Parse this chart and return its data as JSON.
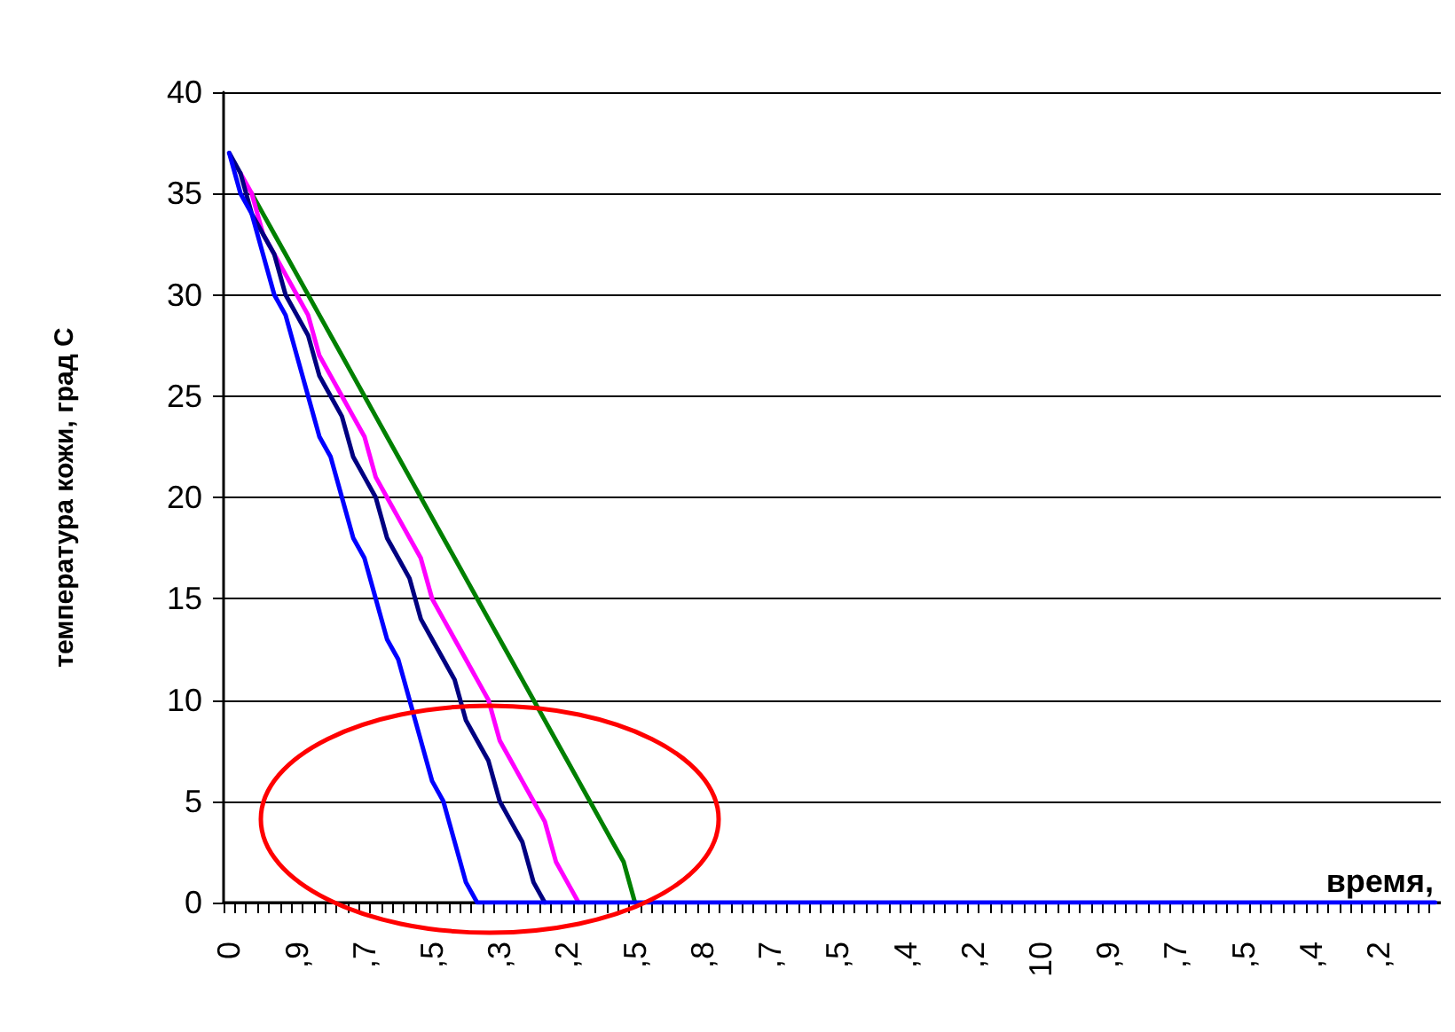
{
  "chart_data": {
    "type": "line",
    "xlabel": "время,",
    "ylabel": "температура кожи, град С",
    "ylim": [
      0,
      40
    ],
    "yticks": [
      0,
      5,
      10,
      15,
      20,
      25,
      30,
      35,
      40
    ],
    "grid": "y",
    "marker": "none",
    "line_style": "solid",
    "categories": [
      "0",
      null,
      null,
      null,
      null,
      null,
      ",9",
      null,
      null,
      null,
      null,
      null,
      ",7",
      null,
      null,
      null,
      null,
      null,
      ",5",
      null,
      null,
      null,
      null,
      null,
      ",3",
      null,
      null,
      null,
      null,
      null,
      ",2",
      null,
      null,
      null,
      null,
      null,
      ",5",
      null,
      null,
      null,
      null,
      null,
      ",8",
      null,
      null,
      null,
      null,
      null,
      ",7",
      null,
      null,
      null,
      null,
      null,
      ",5",
      null,
      null,
      null,
      null,
      null,
      ",4",
      null,
      null,
      null,
      null,
      null,
      ",2",
      null,
      null,
      null,
      null,
      null,
      "10",
      null,
      null,
      null,
      null,
      null,
      ",9",
      null,
      null,
      null,
      null,
      null,
      ",7",
      null,
      null,
      null,
      null,
      null,
      ",5",
      null,
      null,
      null,
      null,
      null,
      ",4",
      null,
      null,
      null,
      null,
      null,
      ",2",
      null,
      null,
      null,
      null,
      null
    ],
    "series": [
      {
        "color": "#008000",
        "values": [
          null,
          null,
          35,
          34,
          33,
          32,
          31,
          30,
          29,
          28,
          27,
          26,
          25,
          24,
          23,
          22,
          21,
          20,
          19,
          18,
          17,
          16,
          15,
          14,
          13,
          12,
          11,
          10,
          9,
          8,
          7,
          6,
          5,
          4,
          3,
          2,
          0,
          null,
          null,
          null,
          null,
          null,
          null,
          null,
          null,
          null,
          null,
          null,
          null,
          null,
          null,
          null,
          null,
          null,
          null,
          null,
          null,
          null,
          null,
          null,
          null,
          null,
          null,
          null,
          null,
          null,
          null,
          null,
          null,
          null,
          null,
          null,
          null,
          null,
          null,
          null,
          null,
          null,
          null,
          null,
          null,
          null,
          null,
          null,
          null,
          null,
          null,
          null,
          null,
          null,
          null,
          null,
          null,
          null,
          null,
          null,
          null,
          null,
          null,
          null,
          null,
          null,
          null,
          null,
          null,
          null,
          null,
          null
        ]
      },
      {
        "color": "#ff00ff",
        "values": [
          null,
          36,
          35,
          33,
          32,
          31,
          30,
          29,
          27,
          26,
          25,
          24,
          23,
          21,
          20,
          19,
          18,
          17,
          15,
          14,
          13,
          12,
          11,
          10,
          8,
          7,
          6,
          5,
          4,
          2,
          1,
          0,
          null,
          null,
          null,
          null,
          null,
          null,
          null,
          null,
          null,
          null,
          null,
          null,
          null,
          null,
          null,
          null,
          null,
          null,
          null,
          null,
          null,
          null,
          null,
          null,
          null,
          null,
          null,
          null,
          null,
          null,
          null,
          null,
          null,
          null,
          null,
          null,
          null,
          null,
          null,
          null,
          null,
          null,
          null,
          null,
          null,
          null,
          null,
          null,
          null,
          null,
          null,
          null,
          null,
          null,
          null,
          null,
          null,
          null,
          null,
          null,
          null,
          null,
          null,
          null,
          null,
          null,
          null,
          null,
          null,
          null,
          null,
          null,
          null,
          null,
          null,
          null
        ]
      },
      {
        "color": "#000080",
        "values": [
          37,
          36,
          34,
          33,
          32,
          30,
          29,
          28,
          26,
          25,
          24,
          22,
          21,
          20,
          18,
          17,
          16,
          14,
          13,
          12,
          11,
          9,
          8,
          7,
          5,
          4,
          3,
          1,
          0,
          null,
          null,
          null,
          null,
          null,
          null,
          null,
          null,
          null,
          null,
          null,
          null,
          null,
          null,
          null,
          null,
          null,
          null,
          null,
          null,
          null,
          null,
          null,
          null,
          null,
          null,
          null,
          null,
          null,
          null,
          null,
          null,
          null,
          null,
          null,
          null,
          null,
          null,
          null,
          null,
          null,
          null,
          null,
          null,
          null,
          null,
          null,
          null,
          null,
          null,
          null,
          null,
          null,
          null,
          null,
          null,
          null,
          null,
          null,
          null,
          null,
          null,
          null,
          null,
          null,
          null,
          null,
          null,
          null,
          null,
          null,
          null,
          null,
          null,
          null,
          null,
          null,
          null,
          null
        ]
      },
      {
        "color": "#0000ff",
        "values": [
          37,
          35,
          34,
          32,
          30,
          29,
          27,
          25,
          23,
          22,
          20,
          18,
          17,
          15,
          13,
          12,
          10,
          8,
          6,
          5,
          3,
          1,
          0,
          0,
          0,
          0,
          0,
          0,
          0,
          0,
          0,
          0,
          0,
          0,
          0,
          0,
          0,
          0,
          0,
          0,
          0,
          0,
          0,
          0,
          0,
          0,
          0,
          0,
          0,
          0,
          0,
          0,
          0,
          0,
          0,
          0,
          0,
          0,
          0,
          0,
          0,
          0,
          0,
          0,
          0,
          0,
          0,
          0,
          0,
          0,
          0,
          0,
          0,
          0,
          0,
          0,
          0,
          0,
          0,
          0,
          0,
          0,
          0,
          0,
          0,
          0,
          0,
          0,
          0,
          0,
          0,
          0,
          0,
          0,
          0,
          0,
          0,
          0,
          0,
          0,
          0,
          0,
          0,
          0,
          0,
          0,
          0,
          0
        ]
      }
    ]
  }
}
